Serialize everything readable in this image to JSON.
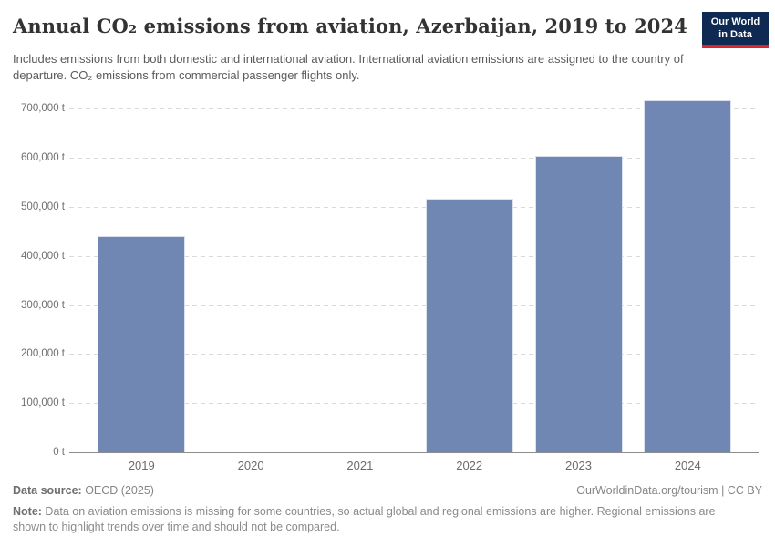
{
  "header": {
    "title": "Annual CO₂ emissions from aviation, Azerbaijan, 2019 to 2024",
    "subtitle": "Includes emissions from both domestic and international aviation. International aviation emissions are assigned to the country of departure. CO₂ emissions from commercial passenger flights only.",
    "logo": {
      "line1": "Our World",
      "line2": "in Data",
      "bg_color": "#0f2a52",
      "accent_color": "#d7262c"
    }
  },
  "chart_data": {
    "type": "bar",
    "title": "Annual CO₂ emissions from aviation, Azerbaijan, 2019 to 2024",
    "categories": [
      "2019",
      "2020",
      "2021",
      "2022",
      "2023",
      "2024"
    ],
    "values": [
      440000,
      null,
      null,
      517000,
      605000,
      718000
    ],
    "unit": "t",
    "ylim": [
      0,
      700000
    ],
    "ytick_step": 100000,
    "ytick_labels": [
      "0 t",
      "100,000 t",
      "200,000 t",
      "300,000 t",
      "400,000 t",
      "500,000 t",
      "600,000 t",
      "700,000 t"
    ],
    "bar_color": "#6f87b2",
    "grid": "dashed horizontal gridlines",
    "legend": "none",
    "xlabel": "",
    "ylabel": ""
  },
  "footer": {
    "datasource_label": "Data source:",
    "datasource_value": " OECD (2025)",
    "attribution": "OurWorldinData.org/tourism | CC BY",
    "note_label": "Note:",
    "note_text": " Data on aviation emissions is missing for some countries, so actual global and regional emissions are higher. Regional emissions are shown to highlight trends over time and should not be compared."
  }
}
